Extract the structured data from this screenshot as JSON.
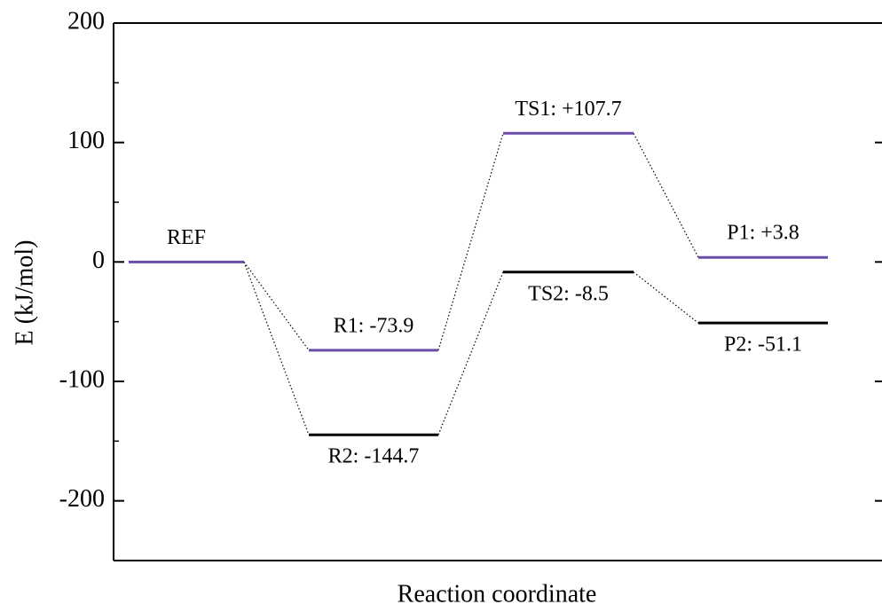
{
  "chart_data": {
    "type": "energy-levels",
    "xlabel": "Reaction coordinate",
    "ylabel": "E (kJ/mol)",
    "ylim": [
      -250,
      200
    ],
    "yticks": [
      -200,
      -100,
      0,
      100,
      200
    ],
    "yminor_ticks": [
      -150,
      -50,
      50,
      150
    ],
    "series": [
      {
        "color": "#6a4ca8",
        "label_side": "above",
        "values": [
          0,
          -73.9,
          107.7,
          3.8
        ],
        "value_labels": [
          "REF",
          "R1: -73.9",
          "TS1: +107.7",
          "P1: +3.8"
        ]
      },
      {
        "color": "#000000",
        "label_side": "below",
        "values": [
          null,
          -144.7,
          -8.5,
          -51.1
        ],
        "value_labels": [
          null,
          "R2: -144.7",
          "TS2: -8.5",
          "P2: -51.1"
        ]
      }
    ]
  }
}
